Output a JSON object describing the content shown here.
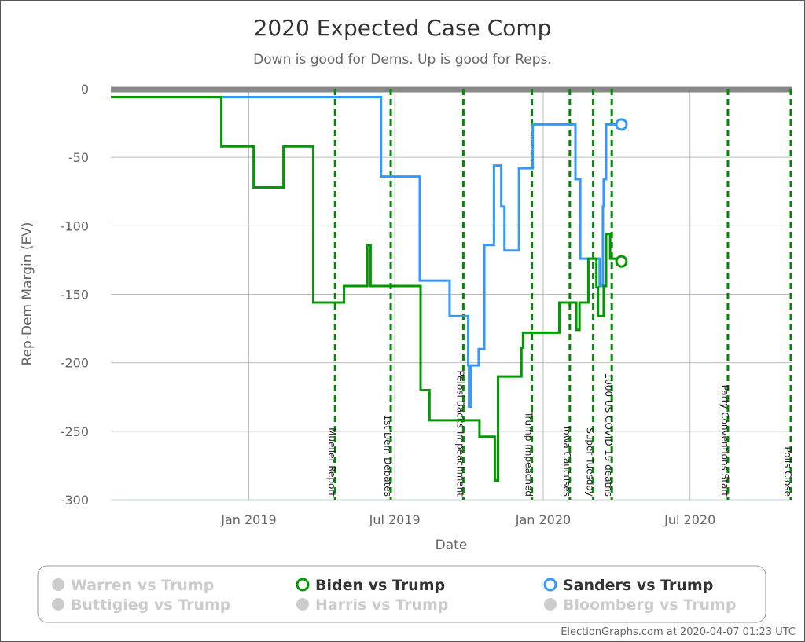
{
  "chart_data": {
    "type": "line",
    "title": "2020 Expected Case Comp",
    "subtitle": "Down is good for Dems. Up is good for Reps.",
    "xlabel": "Date",
    "ylabel": "Rep-Dem Margin (EV)",
    "xlim": [
      "2018-07-14",
      "2020-11-04"
    ],
    "ylim": [
      -300,
      0
    ],
    "yticks": [
      0,
      -50,
      -100,
      -150,
      -200,
      -250,
      -300
    ],
    "xticks": [
      {
        "date": "2019-01-01",
        "label": "Jan 2019"
      },
      {
        "date": "2019-07-01",
        "label": "Jul 2019"
      },
      {
        "date": "2020-01-01",
        "label": "Jan 2020"
      },
      {
        "date": "2020-07-01",
        "label": "Jul 2020"
      }
    ],
    "grid": true,
    "step": true,
    "events": [
      {
        "date": "2019-04-18",
        "label": "Mueller Report"
      },
      {
        "date": "2019-06-26",
        "label": "1st Dem Debates"
      },
      {
        "date": "2019-09-24",
        "label": "Pelosi Backs Impeachment"
      },
      {
        "date": "2019-12-18",
        "label": "Trump Impeached"
      },
      {
        "date": "2020-02-03",
        "label": "Iowa Caucuses"
      },
      {
        "date": "2020-03-03",
        "label": "Super Tuesday"
      },
      {
        "date": "2020-03-26",
        "label": "1000 US COVID-19 deaths"
      },
      {
        "date": "2020-08-17",
        "label": "Party Conventions Start"
      },
      {
        "date": "2020-11-03",
        "label": "Polls Close"
      }
    ],
    "series": [
      {
        "name": "Biden vs Trump",
        "color": "#009900",
        "points": [
          [
            "2018-07-14",
            -6
          ],
          [
            "2018-11-28",
            -42
          ],
          [
            "2019-01-07",
            -72
          ],
          [
            "2019-02-13",
            -42
          ],
          [
            "2019-03-22",
            -156
          ],
          [
            "2019-04-29",
            -144
          ],
          [
            "2019-05-28",
            -114
          ],
          [
            "2019-06-01",
            -144
          ],
          [
            "2019-08-02",
            -220
          ],
          [
            "2019-08-13",
            -242
          ],
          [
            "2019-10-14",
            -254
          ],
          [
            "2019-11-02",
            -286
          ],
          [
            "2019-11-06",
            -210
          ],
          [
            "2019-12-05",
            -189
          ],
          [
            "2019-12-07",
            -178
          ],
          [
            "2020-01-21",
            -156
          ],
          [
            "2020-02-11",
            -176
          ],
          [
            "2020-02-15",
            -156
          ],
          [
            "2020-02-26",
            -124
          ],
          [
            "2020-03-07",
            -145
          ],
          [
            "2020-03-09",
            -166
          ],
          [
            "2020-03-16",
            -144
          ],
          [
            "2020-03-19",
            -106
          ],
          [
            "2020-03-24",
            -124
          ],
          [
            "2020-04-07",
            -126
          ]
        ]
      },
      {
        "name": "Sanders vs Trump",
        "color": "#3399ff",
        "points": [
          [
            "2018-07-14",
            -6
          ],
          [
            "2019-06-14",
            -64
          ],
          [
            "2019-08-01",
            -140
          ],
          [
            "2019-09-07",
            -166
          ],
          [
            "2019-09-30",
            -202
          ],
          [
            "2019-10-01",
            -232
          ],
          [
            "2019-10-03",
            -202
          ],
          [
            "2019-10-13",
            -190
          ],
          [
            "2019-10-20",
            -114
          ],
          [
            "2019-11-01",
            -56
          ],
          [
            "2019-11-10",
            -86
          ],
          [
            "2019-11-14",
            -118
          ],
          [
            "2019-12-02",
            -58
          ],
          [
            "2019-12-19",
            -26
          ],
          [
            "2020-02-10",
            -66
          ],
          [
            "2020-02-16",
            -124
          ],
          [
            "2020-03-11",
            -144
          ],
          [
            "2020-03-15",
            -86
          ],
          [
            "2020-03-16",
            -66
          ],
          [
            "2020-03-19",
            -26
          ],
          [
            "2020-04-07",
            -26
          ]
        ]
      }
    ],
    "legend": {
      "placement": "bottom",
      "items": [
        {
          "label": "Warren vs Trump",
          "active": false,
          "color": "#cccccc"
        },
        {
          "label": "Biden vs Trump",
          "active": true,
          "color": "#009900"
        },
        {
          "label": "Sanders vs Trump",
          "active": true,
          "color": "#3399ff"
        },
        {
          "label": "Buttigieg vs Trump",
          "active": false,
          "color": "#cccccc"
        },
        {
          "label": "Harris vs Trump",
          "active": false,
          "color": "#cccccc"
        },
        {
          "label": "Bloomberg vs Trump",
          "active": false,
          "color": "#cccccc"
        }
      ]
    },
    "credit": "ElectionGraphs.com at 2020-04-07 01:23 UTC"
  }
}
